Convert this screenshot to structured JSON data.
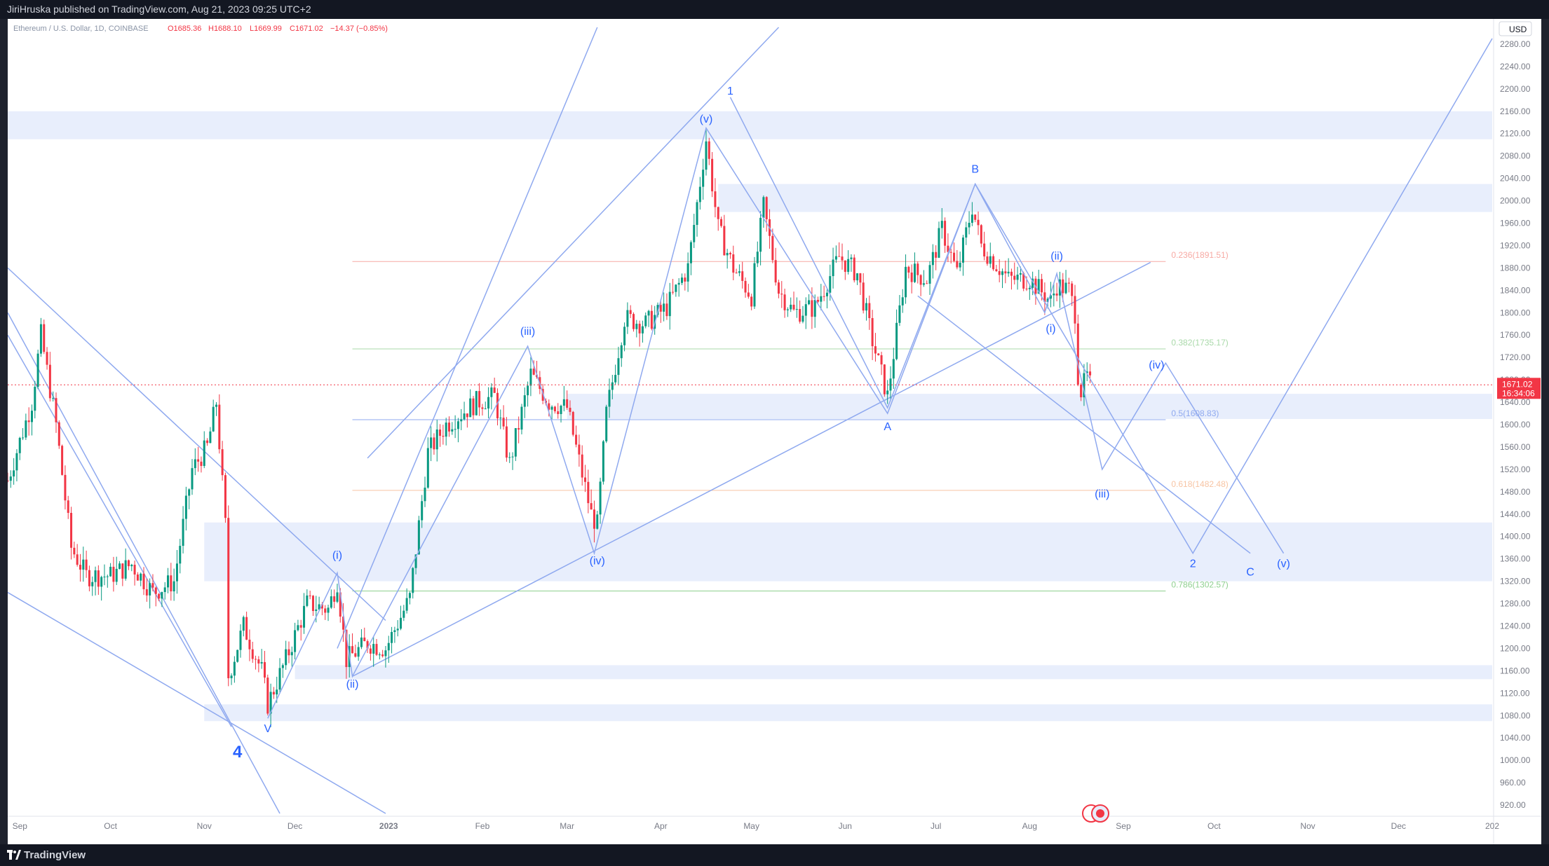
{
  "header": {
    "published": "JiriHruska published on TradingView.com, Aug 21, 2023 09:25 UTC+2"
  },
  "footer": {
    "brand": "TradingView"
  },
  "colors": {
    "wave": "#2962ff",
    "line": "#8fa9ef",
    "zone": "#e8eefc",
    "up": "#089981",
    "down": "#f23645",
    "price_tag": "#f23645"
  },
  "chart_data": {
    "type": "candlestick",
    "symbol_line": {
      "name": "Ethereum / U.S. Dollar, 1D, COINBASE",
      "open": "O1685.36",
      "high": "H1688.10",
      "low": "L1669.99",
      "close": "C1671.02",
      "change": "−14.37 (−0.85%)"
    },
    "currency": "USD",
    "last_price": "1671.02",
    "countdown": "16:34:06",
    "ylim": [
      900,
      2300
    ],
    "y_ticks": [
      920,
      960,
      1000,
      1040,
      1080,
      1120,
      1160,
      1200,
      1240,
      1280,
      1320,
      1360,
      1400,
      1440,
      1480,
      1520,
      1560,
      1600,
      1640,
      1680,
      1720,
      1760,
      1800,
      1840,
      1880,
      1920,
      1960,
      2000,
      2040,
      2080,
      2120,
      2160,
      2200,
      2240,
      2280
    ],
    "y_tick_labels": [
      "920.00",
      "960.00",
      "1000.00",
      "1040.00",
      "1080.00",
      "1120.00",
      "1160.00",
      "1200.00",
      "1240.00",
      "1280.00",
      "1320.00",
      "1360.00",
      "1400.00",
      "1440.00",
      "1480.00",
      "1520.00",
      "1560.00",
      "1600.00",
      "1640.00",
      "1680.00",
      "1720.00",
      "1760.00",
      "1800.00",
      "1840.00",
      "1880.00",
      "1920.00",
      "1960.00",
      "2000.00",
      "2040.00",
      "2080.00",
      "2120.00",
      "2160.00",
      "2200.00",
      "2240.00",
      "2280.00"
    ],
    "x_range": [
      "2022-08-28",
      "2024-01-01"
    ],
    "x_ticks": [
      {
        "date": "2022-09-01",
        "label": "Sep"
      },
      {
        "date": "2022-10-01",
        "label": "Oct"
      },
      {
        "date": "2022-11-01",
        "label": "Nov"
      },
      {
        "date": "2022-12-01",
        "label": "Dec"
      },
      {
        "date": "2023-01-01",
        "label": "2023"
      },
      {
        "date": "2023-02-01",
        "label": "Feb"
      },
      {
        "date": "2023-03-01",
        "label": "Mar"
      },
      {
        "date": "2023-04-01",
        "label": "Apr"
      },
      {
        "date": "2023-05-01",
        "label": "May"
      },
      {
        "date": "2023-06-01",
        "label": "Jun"
      },
      {
        "date": "2023-07-01",
        "label": "Jul"
      },
      {
        "date": "2023-08-01",
        "label": "Aug"
      },
      {
        "date": "2023-09-01",
        "label": "Sep"
      },
      {
        "date": "2023-10-01",
        "label": "Oct"
      },
      {
        "date": "2023-11-01",
        "label": "Nov"
      },
      {
        "date": "2023-12-01",
        "label": "Dec"
      },
      {
        "date": "2024-01-01",
        "label": "202"
      }
    ],
    "price_path": [
      {
        "date": "2022-08-28",
        "price": 1500
      },
      {
        "date": "2022-09-05",
        "price": 1640
      },
      {
        "date": "2022-09-08",
        "price": 1760
      },
      {
        "date": "2022-09-13",
        "price": 1600
      },
      {
        "date": "2022-09-18",
        "price": 1380
      },
      {
        "date": "2022-09-23",
        "price": 1330
      },
      {
        "date": "2022-10-01",
        "price": 1330
      },
      {
        "date": "2022-10-08",
        "price": 1350
      },
      {
        "date": "2022-10-15",
        "price": 1300
      },
      {
        "date": "2022-10-22",
        "price": 1320
      },
      {
        "date": "2022-10-28",
        "price": 1520
      },
      {
        "date": "2022-11-02",
        "price": 1560
      },
      {
        "date": "2022-11-05",
        "price": 1640
      },
      {
        "date": "2022-11-08",
        "price": 1420
      },
      {
        "date": "2022-11-09",
        "price": 1150
      },
      {
        "date": "2022-11-14",
        "price": 1240
      },
      {
        "date": "2022-11-20",
        "price": 1160
      },
      {
        "date": "2022-11-22",
        "price": 1100
      },
      {
        "date": "2022-11-28",
        "price": 1180
      },
      {
        "date": "2022-12-05",
        "price": 1280
      },
      {
        "date": "2022-12-12",
        "price": 1270
      },
      {
        "date": "2022-12-15",
        "price": 1320
      },
      {
        "date": "2022-12-18",
        "price": 1180
      },
      {
        "date": "2022-12-25",
        "price": 1210
      },
      {
        "date": "2022-12-31",
        "price": 1200
      },
      {
        "date": "2023-01-08",
        "price": 1290
      },
      {
        "date": "2023-01-14",
        "price": 1550
      },
      {
        "date": "2023-01-20",
        "price": 1600
      },
      {
        "date": "2023-01-30",
        "price": 1640
      },
      {
        "date": "2023-02-05",
        "price": 1650
      },
      {
        "date": "2023-02-10",
        "price": 1530
      },
      {
        "date": "2023-02-17",
        "price": 1690
      },
      {
        "date": "2023-02-23",
        "price": 1640
      },
      {
        "date": "2023-03-01",
        "price": 1630
      },
      {
        "date": "2023-03-09",
        "price": 1440
      },
      {
        "date": "2023-03-11",
        "price": 1420
      },
      {
        "date": "2023-03-14",
        "price": 1620
      },
      {
        "date": "2023-03-20",
        "price": 1790
      },
      {
        "date": "2023-03-27",
        "price": 1780
      },
      {
        "date": "2023-04-03",
        "price": 1810
      },
      {
        "date": "2023-04-10",
        "price": 1880
      },
      {
        "date": "2023-04-16",
        "price": 2110
      },
      {
        "date": "2023-04-20",
        "price": 1950
      },
      {
        "date": "2023-04-25",
        "price": 1880
      },
      {
        "date": "2023-05-01",
        "price": 1830
      },
      {
        "date": "2023-05-05",
        "price": 1990
      },
      {
        "date": "2023-05-10",
        "price": 1840
      },
      {
        "date": "2023-05-15",
        "price": 1800
      },
      {
        "date": "2023-05-22",
        "price": 1810
      },
      {
        "date": "2023-05-30",
        "price": 1900
      },
      {
        "date": "2023-06-05",
        "price": 1870
      },
      {
        "date": "2023-06-10",
        "price": 1750
      },
      {
        "date": "2023-06-15",
        "price": 1650
      },
      {
        "date": "2023-06-21",
        "price": 1880
      },
      {
        "date": "2023-06-28",
        "price": 1860
      },
      {
        "date": "2023-07-03",
        "price": 1950
      },
      {
        "date": "2023-07-08",
        "price": 1870
      },
      {
        "date": "2023-07-13",
        "price": 1990
      },
      {
        "date": "2023-07-16",
        "price": 1920
      },
      {
        "date": "2023-07-25",
        "price": 1860
      },
      {
        "date": "2023-08-01",
        "price": 1860
      },
      {
        "date": "2023-08-08",
        "price": 1820
      },
      {
        "date": "2023-08-10",
        "price": 1850
      },
      {
        "date": "2023-08-14",
        "price": 1840
      },
      {
        "date": "2023-08-16",
        "price": 1800
      },
      {
        "date": "2023-08-17",
        "price": 1690
      },
      {
        "date": "2023-08-18",
        "price": 1660
      },
      {
        "date": "2023-08-20",
        "price": 1685
      },
      {
        "date": "2023-08-21",
        "price": 1671
      }
    ],
    "zones": [
      {
        "from": "2022-08-28",
        "to": "2024-01-01",
        "low": 2110,
        "high": 2160
      },
      {
        "from": "2023-04-20",
        "to": "2024-01-01",
        "low": 1980,
        "high": 2030
      },
      {
        "from": "2023-03-01",
        "to": "2024-01-01",
        "low": 1610,
        "high": 1655
      },
      {
        "from": "2022-11-01",
        "to": "2024-01-01",
        "low": 1320,
        "high": 1425
      },
      {
        "from": "2022-11-01",
        "to": "2024-01-01",
        "low": 1070,
        "high": 1100
      },
      {
        "from": "2022-12-01",
        "to": "2024-01-01",
        "low": 1145,
        "high": 1170
      }
    ],
    "fib_levels": [
      {
        "label": "0.236(1891.51)",
        "price": 1891.51,
        "color": "#f7a9a3",
        "from": "2022-12-20",
        "to": "2023-09-15"
      },
      {
        "label": "0.382(1735.17)",
        "price": 1735.17,
        "color": "#a9d9a9",
        "from": "2022-12-20",
        "to": "2023-09-15"
      },
      {
        "label": "0.5(1608.83)",
        "price": 1608.83,
        "color": "#8fa9ef",
        "from": "2022-12-20",
        "to": "2023-09-15"
      },
      {
        "label": "0.618(1482.48)",
        "price": 1482.48,
        "color": "#f7c4a3",
        "from": "2022-12-20",
        "to": "2023-09-15"
      },
      {
        "label": "0.786(1302.57)",
        "price": 1302.57,
        "color": "#8fd08f",
        "from": "2022-12-20",
        "to": "2023-09-15"
      }
    ],
    "wave_labels": [
      {
        "text": "1",
        "date": "2023-04-24",
        "price": 2190,
        "big": false
      },
      {
        "text": "(v)",
        "date": "2023-04-16",
        "price": 2140,
        "big": false
      },
      {
        "text": "(iii)",
        "date": "2023-02-16",
        "price": 1760,
        "big": false
      },
      {
        "text": "(i)",
        "date": "2022-12-15",
        "price": 1360,
        "big": false
      },
      {
        "text": "(ii)",
        "date": "2022-12-20",
        "price": 1130,
        "big": false
      },
      {
        "text": "(iv)",
        "date": "2023-03-11",
        "price": 1350,
        "big": false
      },
      {
        "text": "V",
        "date": "2022-11-22",
        "price": 1050,
        "big": false
      },
      {
        "text": "4",
        "date": "2022-11-12",
        "price": 1005,
        "big": true
      },
      {
        "text": "A",
        "date": "2023-06-15",
        "price": 1590,
        "big": false
      },
      {
        "text": "B",
        "date": "2023-07-14",
        "price": 2050,
        "big": false
      },
      {
        "text": "(ii)",
        "date": "2023-08-10",
        "price": 1895,
        "big": false
      },
      {
        "text": "(i)",
        "date": "2023-08-08",
        "price": 1765,
        "big": false
      },
      {
        "text": "(iv)",
        "date": "2023-09-12",
        "price": 1700,
        "big": false
      },
      {
        "text": "(iii)",
        "date": "2023-08-25",
        "price": 1470,
        "big": false
      },
      {
        "text": "2",
        "date": "2023-09-24",
        "price": 1345,
        "big": false
      },
      {
        "text": "C",
        "date": "2023-10-13",
        "price": 1330,
        "big": false
      },
      {
        "text": "(v)",
        "date": "2023-10-24",
        "price": 1345,
        "big": false
      }
    ],
    "wave_path": [
      {
        "date": "2022-11-22",
        "price": 1075
      },
      {
        "date": "2022-12-15",
        "price": 1335
      },
      {
        "date": "2022-12-20",
        "price": 1150
      },
      {
        "date": "2023-02-16",
        "price": 1740
      },
      {
        "date": "2023-03-10",
        "price": 1370
      },
      {
        "date": "2023-04-16",
        "price": 2130
      },
      {
        "date": "2023-06-15",
        "price": 1620
      },
      {
        "date": "2023-07-14",
        "price": 2030
      },
      {
        "date": "2023-08-06",
        "price": 1800
      },
      {
        "date": "2023-08-10",
        "price": 1870
      },
      {
        "date": "2023-08-25",
        "price": 1520
      },
      {
        "date": "2023-09-15",
        "price": 1710
      },
      {
        "date": "2023-10-24",
        "price": 1370
      }
    ],
    "projection_path": [
      {
        "date": "2023-04-24",
        "price": 2185
      },
      {
        "date": "2023-06-15",
        "price": 1630
      },
      {
        "date": "2023-07-14",
        "price": 2030
      },
      {
        "date": "2023-09-24",
        "price": 1370
      },
      {
        "date": "2024-01-01",
        "price": 2290
      }
    ],
    "trendlines": [
      {
        "from": {
          "date": "2022-08-28",
          "price": 1880
        },
        "to": {
          "date": "2022-12-31",
          "price": 1250
        }
      },
      {
        "from": {
          "date": "2022-08-28",
          "price": 1300
        },
        "to": {
          "date": "2022-12-31",
          "price": 905
        }
      },
      {
        "from": {
          "date": "2022-08-28",
          "price": 1800
        },
        "to": {
          "date": "2022-11-26",
          "price": 905
        }
      },
      {
        "from": {
          "date": "2022-08-28",
          "price": 1760
        },
        "to": {
          "date": "2022-11-10",
          "price": 1060
        }
      },
      {
        "from": {
          "date": "2022-12-20",
          "price": 1150
        },
        "to": {
          "date": "2023-09-10",
          "price": 1890
        }
      },
      {
        "from": {
          "date": "2022-12-25",
          "price": 1540
        },
        "to": {
          "date": "2023-05-10",
          "price": 2310
        }
      },
      {
        "from": {
          "date": "2022-12-15",
          "price": 1200
        },
        "to": {
          "date": "2023-03-11",
          "price": 2310
        }
      },
      {
        "from": {
          "date": "2023-06-25",
          "price": 1830
        },
        "to": {
          "date": "2023-10-13",
          "price": 1370
        }
      }
    ]
  }
}
